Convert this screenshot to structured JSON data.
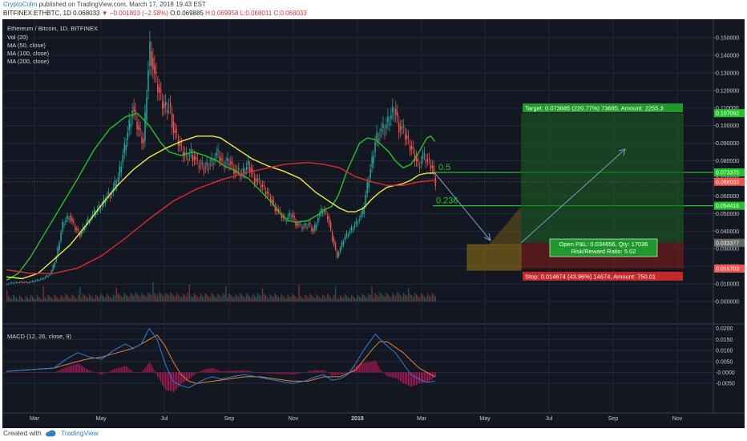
{
  "header": {
    "author": "CryptoColm",
    "published": "published on TradingView.com, March 17, 2018 19:43 EST",
    "symbol": "BITFINEX:ETHBTC, 1D",
    "last": "0.068033",
    "change": "−0.001803 (−2.58%)",
    "open": "O:0.069885",
    "high": "H:0.069958",
    "low": "L:0.068011",
    "close": "C:0.068033"
  },
  "footer": {
    "created": "Created with",
    "brand": "TradingView",
    "logo_icon": "tradingview-cloud-icon"
  },
  "colors": {
    "bg": "#131722",
    "up": "#26a69a",
    "down": "#ef5350",
    "ma50": "#22c42a",
    "ma100": "#eded3c",
    "ma200": "#dd2b2b",
    "green": "#22c42a",
    "macd": "#2f7fd8",
    "signal": "#e0813a",
    "hist": "#c2185b"
  },
  "chart_data": [
    {
      "type": "candlestick",
      "title": "Ethereum / Bitcoin, 1D, BITFINEX",
      "indicators": [
        "Vol (20)",
        "MA (50, close)",
        "MA (100, close)",
        "MA (200, close)"
      ],
      "x_ticks": [
        "Mar",
        "May",
        "Jul",
        "Sep",
        "Nov",
        "2018",
        "Mar",
        "May",
        "Jul",
        "Sep",
        "Nov"
      ],
      "y_ticks": [
        "0.150000",
        "0.140000",
        "0.130000",
        "0.120000",
        "0.110000",
        "0.100000",
        "0.090000",
        "0.080000",
        "0.070000",
        "0.060000",
        "0.050000",
        "0.040000",
        "0.030000",
        "0.020000",
        "0.010000",
        "0.000000"
      ],
      "ylim": [
        0,
        0.155
      ],
      "price_tags": [
        {
          "value": 0.107062,
          "label": "0.107062",
          "color": "#22c42a"
        },
        {
          "value": 0.073375,
          "label": "0.073375",
          "color": "#22c42a"
        },
        {
          "value": 0.068033,
          "label": "0.068033",
          "color": "#ef5350"
        },
        {
          "value": 0.054416,
          "label": "0.054416",
          "color": "#22c42a"
        },
        {
          "value": 0.033377,
          "label": "0.033377",
          "color": "#666666"
        },
        {
          "value": 0.018703,
          "label": "0.018703",
          "color": "#ef5350"
        }
      ],
      "series": [
        {
          "name": "MA (50, close)",
          "x": [
            0,
            15,
            30,
            50,
            70,
            90,
            110,
            130,
            150,
            165,
            180,
            195,
            205,
            220,
            235,
            250,
            265,
            275,
            285,
            305,
            320,
            335,
            345,
            355,
            365,
            380,
            395,
            400,
            410,
            418,
            430,
            445,
            455,
            465,
            475,
            482,
            490,
            500,
            510,
            520,
            530,
            535,
            540
          ],
          "y": [
            0.012,
            0.016,
            0.025,
            0.04,
            0.055,
            0.07,
            0.086,
            0.098,
            0.105,
            0.107,
            0.1,
            0.09,
            0.085,
            0.083,
            0.085,
            0.083,
            0.08,
            0.077,
            0.075,
            0.07,
            0.063,
            0.056,
            0.05,
            0.046,
            0.045,
            0.046,
            0.05,
            0.052,
            0.054,
            0.06,
            0.075,
            0.09,
            0.093,
            0.092,
            0.088,
            0.085,
            0.08,
            0.076,
            0.078,
            0.085,
            0.093,
            0.094,
            0.091
          ]
        },
        {
          "name": "MA (100, close)",
          "x": [
            0,
            20,
            40,
            60,
            80,
            100,
            120,
            140,
            160,
            180,
            200,
            220,
            240,
            260,
            270,
            290,
            310,
            330,
            350,
            370,
            390,
            410,
            420,
            430,
            440,
            450,
            460,
            470,
            480,
            490,
            500,
            510,
            520,
            530,
            540
          ],
          "y": [
            0.014,
            0.013,
            0.016,
            0.024,
            0.032,
            0.043,
            0.055,
            0.066,
            0.075,
            0.082,
            0.087,
            0.091,
            0.094,
            0.094,
            0.093,
            0.087,
            0.081,
            0.077,
            0.074,
            0.07,
            0.062,
            0.056,
            0.053,
            0.051,
            0.051,
            0.053,
            0.058,
            0.062,
            0.065,
            0.066,
            0.067,
            0.069,
            0.072,
            0.073,
            0.073
          ]
        },
        {
          "name": "MA (200, close)",
          "x": [
            0,
            30,
            60,
            90,
            120,
            150,
            180,
            210,
            240,
            270,
            300,
            330,
            350,
            380,
            400,
            420,
            440,
            460,
            480,
            500,
            520,
            540
          ],
          "y": [
            0.018,
            0.016,
            0.016,
            0.019,
            0.026,
            0.036,
            0.047,
            0.057,
            0.064,
            0.069,
            0.073,
            0.076,
            0.078,
            0.079,
            0.078,
            0.076,
            0.071,
            0.068,
            0.066,
            0.066,
            0.068,
            0.069
          ]
        },
        {
          "name": "Close",
          "x": [
            0,
            15,
            30,
            45,
            55,
            62,
            70,
            78,
            85,
            92,
            100,
            110,
            120,
            125,
            132,
            140,
            150,
            158,
            165,
            172,
            176,
            180,
            186,
            192,
            198,
            205,
            210,
            218,
            225,
            232,
            240,
            250,
            258,
            265,
            272,
            280,
            288,
            296,
            304,
            312,
            320,
            330,
            340,
            350,
            358,
            365,
            372,
            380,
            386,
            392,
            398,
            404,
            410,
            416,
            420,
            425,
            432,
            440,
            448,
            455,
            460,
            465,
            470,
            476,
            482,
            488,
            494,
            500,
            506,
            512,
            518,
            524,
            530,
            536,
            540
          ],
          "y": [
            0.01,
            0.011,
            0.011,
            0.013,
            0.016,
            0.025,
            0.044,
            0.049,
            0.042,
            0.038,
            0.045,
            0.05,
            0.055,
            0.06,
            0.062,
            0.07,
            0.092,
            0.11,
            0.098,
            0.09,
            0.12,
            0.145,
            0.128,
            0.118,
            0.11,
            0.112,
            0.097,
            0.088,
            0.082,
            0.085,
            0.078,
            0.076,
            0.08,
            0.084,
            0.078,
            0.08,
            0.074,
            0.072,
            0.078,
            0.07,
            0.066,
            0.06,
            0.052,
            0.046,
            0.05,
            0.044,
            0.042,
            0.044,
            0.04,
            0.048,
            0.052,
            0.048,
            0.036,
            0.026,
            0.03,
            0.036,
            0.04,
            0.045,
            0.05,
            0.068,
            0.08,
            0.094,
            0.096,
            0.098,
            0.104,
            0.11,
            0.1,
            0.096,
            0.09,
            0.085,
            0.078,
            0.082,
            0.08,
            0.076,
            0.068
          ]
        }
      ],
      "fib_levels": [
        {
          "label": "0.5",
          "value": 0.073375
        },
        {
          "label": "0.236",
          "value": 0.054416
        }
      ],
      "projection": {
        "label_pnl": "Open P&L: 0.034656, Qty: 17036",
        "label_rr": "Risk/Reward Ratio: 5.02",
        "label_target": "Target: 0.073685 (220.77%) 73685, Amount: 2255.3",
        "label_stop": "Stop: 0.014674 (43.96%) 14674, Amount: 750.01",
        "entry": 0.033377,
        "target": 0.107062,
        "stop": 0.018703
      }
    },
    {
      "type": "line",
      "title": "MACD (12, 26, close, 9)",
      "y_ticks": [
        "0.0200",
        "0.0150",
        "0.0100",
        "0.0050",
        "-0.0000",
        "-0.0050"
      ],
      "ylim": [
        -0.0075,
        0.021
      ],
      "series": [
        {
          "name": "MACD",
          "x": [
            0,
            20,
            40,
            60,
            75,
            90,
            105,
            120,
            135,
            150,
            160,
            170,
            180,
            190,
            200,
            210,
            220,
            230,
            240,
            250,
            260,
            270,
            285,
            300,
            315,
            330,
            345,
            360,
            375,
            390,
            400,
            410,
            420,
            430,
            440,
            450,
            460,
            465,
            470,
            480,
            490,
            500,
            510,
            520,
            530,
            540
          ],
          "y": [
            0.0005,
            0.001,
            0.0015,
            0.002,
            0.006,
            0.009,
            0.007,
            0.006,
            0.01,
            0.013,
            0.011,
            0.013,
            0.02,
            0.015,
            0.004,
            -0.004,
            -0.006,
            -0.007,
            -0.005,
            -0.003,
            -0.002,
            -0.003,
            -0.002,
            -0.001,
            -0.002,
            -0.003,
            -0.004,
            -0.005,
            -0.004,
            -0.002,
            -0.001,
            -0.0035,
            -0.003,
            -0.001,
            0.004,
            0.01,
            0.015,
            0.0175,
            0.0155,
            0.012,
            0.009,
            0.004,
            -0.001,
            -0.003,
            -0.0045,
            -0.004
          ]
        },
        {
          "name": "Signal",
          "x": [
            0,
            20,
            40,
            60,
            80,
            100,
            120,
            140,
            160,
            180,
            190,
            200,
            210,
            220,
            230,
            240,
            260,
            280,
            300,
            320,
            340,
            360,
            380,
            400,
            420,
            440,
            460,
            470,
            480,
            500,
            520,
            540
          ],
          "y": [
            0.0005,
            0.001,
            0.0015,
            0.002,
            0.004,
            0.006,
            0.007,
            0.009,
            0.011,
            0.015,
            0.017,
            0.012,
            0.005,
            -0.001,
            -0.004,
            -0.005,
            -0.004,
            -0.003,
            -0.002,
            -0.002,
            -0.003,
            -0.004,
            -0.004,
            -0.002,
            -0.002,
            0.001,
            0.01,
            0.014,
            0.014,
            0.009,
            0.002,
            -0.002
          ]
        }
      ]
    }
  ]
}
